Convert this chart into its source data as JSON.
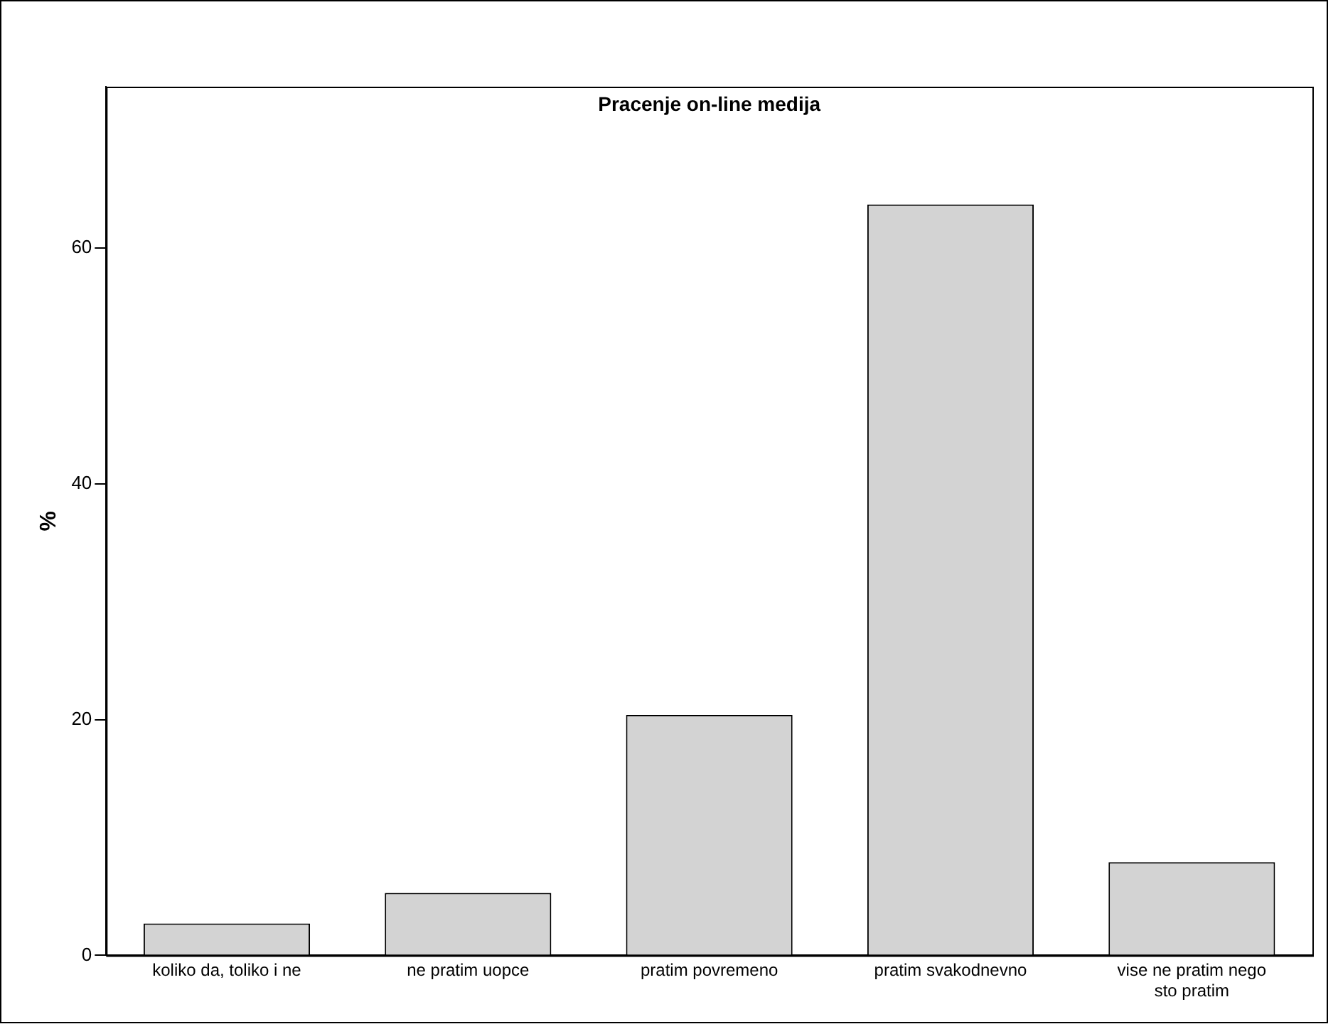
{
  "chart_data": {
    "type": "bar",
    "title": "Pracenje on-line medija",
    "ylabel": "%",
    "categories": [
      "koliko da, toliko i ne",
      "ne pratim uopce",
      "pratim povremeno",
      "pratim svakodnevno",
      "vise ne pratim nego sto pratim"
    ],
    "values": [
      2.7,
      5.3,
      20.4,
      63.7,
      7.9
    ],
    "color": "#d3d3d3",
    "ylim": [
      0,
      73.7
    ],
    "yticks": [
      0,
      20,
      40,
      60
    ],
    "grid": false,
    "legend": false
  }
}
